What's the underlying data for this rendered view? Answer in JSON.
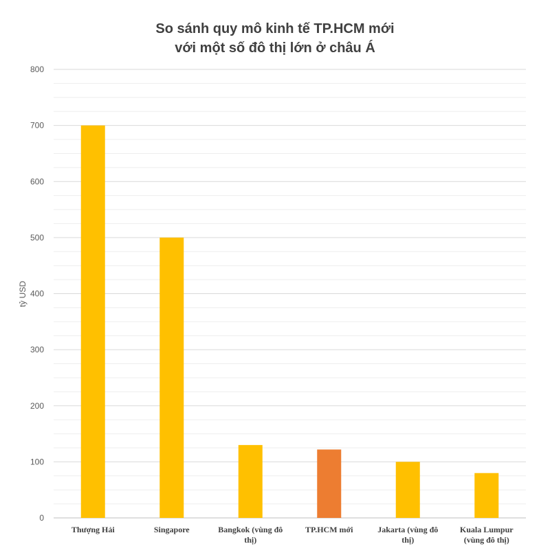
{
  "chart_data": {
    "type": "bar",
    "title_lines": [
      "So sánh quy mô kinh tế TP.HCM mới",
      "với một số đô thị lớn ở châu Á"
    ],
    "ylabel": "tỷ USD",
    "xlabel": "",
    "ylim": [
      0,
      800
    ],
    "yticks": [
      0,
      100,
      200,
      300,
      400,
      500,
      600,
      700,
      800
    ],
    "grid": true,
    "categories": [
      [
        "Thượng Hải"
      ],
      [
        "Singapore"
      ],
      [
        "Bangkok (vùng đô",
        "thị)"
      ],
      [
        "TP.HCM mới"
      ],
      [
        "Jakarta (vùng đô",
        "thị)"
      ],
      [
        "Kuala Lumpur",
        "(vùng đô thị)"
      ]
    ],
    "values": [
      700,
      500,
      130,
      122,
      100,
      80
    ],
    "colors": [
      "#FFC000",
      "#FFC000",
      "#FFC000",
      "#ED7D31",
      "#FFC000",
      "#FFC000"
    ]
  }
}
